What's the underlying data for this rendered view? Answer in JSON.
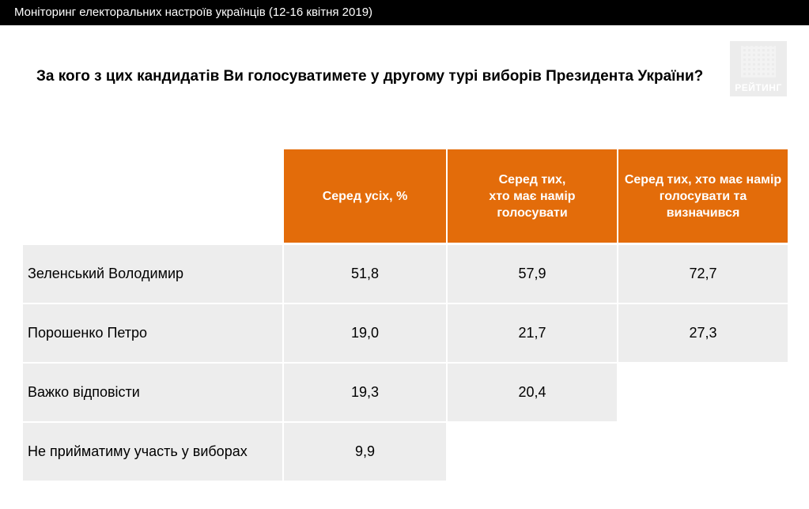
{
  "window": {
    "title": "Моніторинг електоральних настроїв українців (12-16 квітня 2019)"
  },
  "slide": {
    "question": "За кого з цих кандидатів Ви голосуватимете у другому турі виборів Президента України?",
    "logo_text": "РЕЙТИНГ",
    "accent_color": "#e36c0a",
    "cell_color": "#ededed"
  },
  "table": {
    "headers": [
      "Серед усіх, %",
      "Серед тих,\nхто має намір\nголосувати",
      "Серед тих, хто має намір\nголосувати та\nвизначився"
    ],
    "rows": [
      {
        "label": "Зеленський Володимир",
        "values": [
          "51,8",
          "57,9",
          "72,7"
        ]
      },
      {
        "label": "Порошенко Петро",
        "values": [
          "19,0",
          "21,7",
          "27,3"
        ]
      },
      {
        "label": "Важко відповісти",
        "values": [
          "19,3",
          "20,4"
        ]
      },
      {
        "label": "Не прийматиму участь у виборах",
        "values": [
          "9,9"
        ]
      }
    ]
  }
}
